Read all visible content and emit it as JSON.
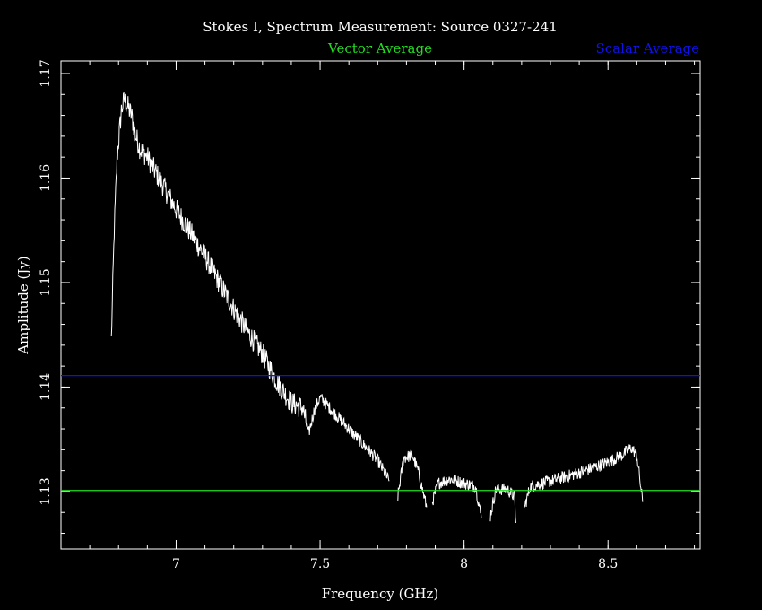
{
  "chart_data": {
    "type": "line",
    "title": "Stokes I, Spectrum Measurement: Source 0327-241",
    "xlabel": "Frequency (GHz)",
    "ylabel": "Amplitude (Jy)",
    "xlim": [
      6.6,
      8.82
    ],
    "ylim": [
      1.1245,
      1.1712
    ],
    "xticks": [
      "7",
      "7.5",
      "8",
      "8.5"
    ],
    "xtick_values": [
      7,
      7.5,
      8,
      8.5
    ],
    "yticks": [
      "1.13",
      "1.14",
      "1.15",
      "1.16",
      "1.17"
    ],
    "ytick_values": [
      1.13,
      1.14,
      1.15,
      1.16,
      1.17
    ],
    "grid": false,
    "legend": [
      {
        "label": "Vector Average",
        "color": "#22dd22"
      },
      {
        "label": "Scalar Average",
        "color": "#1111ee"
      }
    ],
    "series": [
      {
        "color": "#ffffff",
        "segments": [
          {
            "x": [
              6.775,
              6.785,
              6.795,
              6.81,
              6.82,
              6.83,
              6.845,
              6.86,
              6.875,
              6.9,
              6.95,
              7.0,
              7.05,
              7.1,
              7.15,
              7.2,
              7.25,
              7.3,
              7.35,
              7.4,
              7.44,
              7.46,
              7.48,
              7.5,
              7.55,
              7.6,
              7.65,
              7.7,
              7.74
            ],
            "y": [
              1.1445,
              1.155,
              1.162,
              1.1665,
              1.1675,
              1.167,
              1.166,
              1.164,
              1.1628,
              1.162,
              1.1595,
              1.157,
              1.1548,
              1.1525,
              1.15,
              1.1475,
              1.1452,
              1.1432,
              1.1405,
              1.1385,
              1.138,
              1.1355,
              1.1378,
              1.139,
              1.1375,
              1.136,
              1.1345,
              1.133,
              1.131
            ]
          },
          {
            "x": [
              7.77,
              7.79,
              7.82,
              7.84,
              7.87
            ],
            "y": [
              1.1295,
              1.1332,
              1.1335,
              1.132,
              1.1285
            ]
          },
          {
            "x": [
              7.89,
              7.91,
              7.95,
              8.0,
              8.04,
              8.06
            ],
            "y": [
              1.129,
              1.1308,
              1.1312,
              1.1308,
              1.1305,
              1.1275
            ]
          },
          {
            "x": [
              8.09,
              8.11,
              8.15,
              8.175,
              8.18
            ],
            "y": [
              1.1275,
              1.1302,
              1.1302,
              1.1295,
              1.127
            ]
          },
          {
            "x": [
              8.21,
              8.23,
              8.3,
              8.4,
              8.5,
              8.55,
              8.58,
              8.6,
              8.62
            ],
            "y": [
              1.1285,
              1.1305,
              1.131,
              1.1318,
              1.1328,
              1.1335,
              1.1342,
              1.1335,
              1.129
            ]
          }
        ]
      }
    ],
    "reference_lines": [
      {
        "label": "Vector Average",
        "y": 1.1301,
        "color": "#22dd22"
      },
      {
        "label": "Scalar Average",
        "y": 1.1411,
        "color": "#1111ee"
      }
    ]
  }
}
